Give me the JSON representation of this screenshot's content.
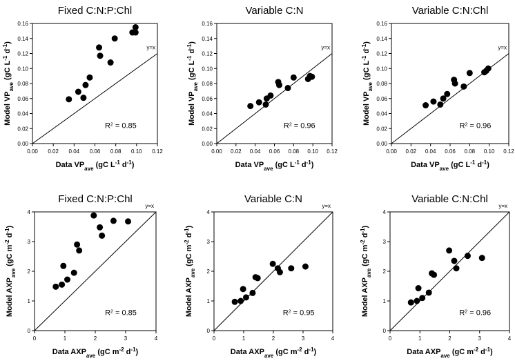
{
  "chart_data": [
    {
      "type": "scatter",
      "title": "Fixed C:N:P:Chl",
      "xlabel": {
        "main": "Data VP",
        "sub": "ave",
        "unit": " (gC L",
        "unit_exp1": "-1",
        "mid": " d",
        "unit_exp2": "-1",
        "end": ")"
      },
      "ylabel": {
        "main": "Model VP",
        "sub": "ave",
        "unit": " (gC L",
        "unit_exp1": "-1",
        "mid": " d",
        "unit_exp2": "-1",
        "end": ")"
      },
      "xlim": [
        0,
        0.12
      ],
      "ylim": [
        0,
        0.16
      ],
      "xticks": [
        "0.00",
        "0.02",
        "0.04",
        "0.06",
        "0.08",
        "0.10",
        "0.12"
      ],
      "yticks": [
        "0.00",
        "0.02",
        "0.04",
        "0.06",
        "0.08",
        "0.10",
        "0.12",
        "0.14",
        "0.16"
      ],
      "reference_line": "y=x",
      "r2_label": "R",
      "r2_exp": "2",
      "r2_value": " = 0.85",
      "points": [
        [
          0.035,
          0.059
        ],
        [
          0.044,
          0.069
        ],
        [
          0.049,
          0.061
        ],
        [
          0.051,
          0.078
        ],
        [
          0.055,
          0.088
        ],
        [
          0.064,
          0.128
        ],
        [
          0.065,
          0.117
        ],
        [
          0.075,
          0.108
        ],
        [
          0.079,
          0.14
        ],
        [
          0.096,
          0.148
        ],
        [
          0.099,
          0.148
        ],
        [
          0.099,
          0.155
        ]
      ]
    },
    {
      "type": "scatter",
      "title": "Variable C:N",
      "xlabel": {
        "main": "Data VP",
        "sub": "ave",
        "unit": " (gC L",
        "unit_exp1": "-1",
        "mid": " d",
        "unit_exp2": "-1",
        "end": ")"
      },
      "ylabel": {
        "main": "Model VP",
        "sub": "ave",
        "unit": " (gC L",
        "unit_exp1": "-1",
        "mid": " d",
        "unit_exp2": "-1",
        "end": ")"
      },
      "xlim": [
        0,
        0.12
      ],
      "ylim": [
        0,
        0.16
      ],
      "xticks": [
        "0.00",
        "0.02",
        "0.04",
        "0.06",
        "0.08",
        "0.10",
        "0.12"
      ],
      "yticks": [
        "0.00",
        "0.02",
        "0.04",
        "0.06",
        "0.08",
        "0.10",
        "0.12",
        "0.14",
        "0.16"
      ],
      "reference_line": "y=x",
      "r2_label": "R",
      "r2_exp": "2",
      "r2_value": " = 0.96",
      "points": [
        [
          0.035,
          0.05
        ],
        [
          0.044,
          0.055
        ],
        [
          0.051,
          0.052
        ],
        [
          0.052,
          0.06
        ],
        [
          0.056,
          0.064
        ],
        [
          0.064,
          0.082
        ],
        [
          0.065,
          0.078
        ],
        [
          0.074,
          0.074
        ],
        [
          0.08,
          0.088
        ],
        [
          0.095,
          0.086
        ],
        [
          0.097,
          0.09
        ],
        [
          0.099,
          0.089
        ]
      ]
    },
    {
      "type": "scatter",
      "title": "Variable C:N:Chl",
      "xlabel": {
        "main": "Data VP",
        "sub": "ave",
        "unit": " (gC L",
        "unit_exp1": "-1",
        "mid": " d",
        "unit_exp2": "-1",
        "end": ")"
      },
      "ylabel": {
        "main": "Model VP",
        "sub": "ave",
        "unit": " (gC L",
        "unit_exp1": "-1",
        "mid": " d",
        "unit_exp2": "-1",
        "end": ")"
      },
      "xlim": [
        0,
        0.12
      ],
      "ylim": [
        0,
        0.16
      ],
      "xticks": [
        "0.00",
        "0.02",
        "0.04",
        "0.06",
        "0.08",
        "0.10",
        "0.12"
      ],
      "yticks": [
        "0.00",
        "0.02",
        "0.04",
        "0.06",
        "0.08",
        "0.10",
        "0.12",
        "0.14",
        "0.16"
      ],
      "reference_line": "y=x",
      "r2_label": "R",
      "r2_exp": "2",
      "r2_value": " = 0.96",
      "points": [
        [
          0.035,
          0.051
        ],
        [
          0.043,
          0.056
        ],
        [
          0.05,
          0.052
        ],
        [
          0.053,
          0.06
        ],
        [
          0.057,
          0.066
        ],
        [
          0.064,
          0.085
        ],
        [
          0.065,
          0.08
        ],
        [
          0.074,
          0.076
        ],
        [
          0.08,
          0.094
        ],
        [
          0.095,
          0.095
        ],
        [
          0.097,
          0.097
        ],
        [
          0.099,
          0.1
        ]
      ]
    },
    {
      "type": "scatter",
      "title": "Fixed C:N:P:Chl",
      "xlabel": {
        "main": "Data AXP",
        "sub": "ave",
        "unit": " (gC m",
        "unit_exp1": "-2",
        "mid": " d",
        "unit_exp2": "-1",
        "end": ")"
      },
      "ylabel": {
        "main": "Model AXP",
        "sub": "ave",
        "unit": " (gC m",
        "unit_exp1": "-2",
        "mid": " d",
        "unit_exp2": "-1",
        "end": ")"
      },
      "xlim": [
        0,
        4
      ],
      "ylim": [
        0,
        4
      ],
      "xticks": [
        "0",
        "1",
        "2",
        "3",
        "4"
      ],
      "yticks": [
        "0",
        "1",
        "2",
        "3",
        "4"
      ],
      "reference_line": "y=x",
      "r2_label": "R",
      "r2_exp": "2",
      "r2_value": " = 0.85",
      "points": [
        [
          0.7,
          1.48
        ],
        [
          0.9,
          1.55
        ],
        [
          0.95,
          2.18
        ],
        [
          1.08,
          1.72
        ],
        [
          1.3,
          1.95
        ],
        [
          1.4,
          2.9
        ],
        [
          1.47,
          2.7
        ],
        [
          1.95,
          3.88
        ],
        [
          2.15,
          3.48
        ],
        [
          2.22,
          3.2
        ],
        [
          2.6,
          3.7
        ],
        [
          3.08,
          3.68
        ]
      ]
    },
    {
      "type": "scatter",
      "title": "Variable C:N",
      "xlabel": {
        "main": "Data AXP",
        "sub": "ave",
        "unit": " (gC m",
        "unit_exp1": "-2",
        "mid": " d",
        "unit_exp2": "-1",
        "end": ")"
      },
      "ylabel": {
        "main": "Model AXP",
        "sub": "ave",
        "unit": " (gC m",
        "unit_exp1": "-2",
        "mid": " d",
        "unit_exp2": "-1",
        "end": ")"
      },
      "xlim": [
        0,
        4
      ],
      "ylim": [
        0,
        4
      ],
      "xticks": [
        "0",
        "1",
        "2",
        "3",
        "4"
      ],
      "yticks": [
        "0",
        "1",
        "2",
        "3",
        "4"
      ],
      "reference_line": "y=x",
      "r2_label": "R",
      "r2_exp": "2",
      "r2_value": " = 0.95",
      "points": [
        [
          0.7,
          0.97
        ],
        [
          0.9,
          1.0
        ],
        [
          0.98,
          1.4
        ],
        [
          1.08,
          1.12
        ],
        [
          1.3,
          1.27
        ],
        [
          1.4,
          1.8
        ],
        [
          1.47,
          1.77
        ],
        [
          1.98,
          2.25
        ],
        [
          2.15,
          2.1
        ],
        [
          2.22,
          1.97
        ],
        [
          2.6,
          2.1
        ],
        [
          3.08,
          2.16
        ]
      ]
    },
    {
      "type": "scatter",
      "title": "Variable C:N:Chl",
      "xlabel": {
        "main": "Data AXP",
        "sub": "ave",
        "unit": " (gC m",
        "unit_exp1": "-2",
        "mid": " d",
        "unit_exp2": "-1",
        "end": ")"
      },
      "ylabel": {
        "main": "Model AXP",
        "sub": "ave",
        "unit": " (gC m",
        "unit_exp1": "-2",
        "mid": " d",
        "unit_exp2": "-1",
        "end": ")"
      },
      "xlim": [
        0,
        4
      ],
      "ylim": [
        0,
        4
      ],
      "xticks": [
        "0",
        "1",
        "2",
        "3",
        "4"
      ],
      "yticks": [
        "0",
        "1",
        "2",
        "3",
        "4"
      ],
      "reference_line": "y=x",
      "r2_label": "R",
      "r2_exp": "2",
      "r2_value": " = 0.96",
      "points": [
        [
          0.7,
          0.95
        ],
        [
          0.9,
          1.0
        ],
        [
          0.95,
          1.43
        ],
        [
          1.08,
          1.1
        ],
        [
          1.3,
          1.28
        ],
        [
          1.4,
          1.93
        ],
        [
          1.47,
          1.88
        ],
        [
          1.98,
          2.7
        ],
        [
          2.15,
          2.35
        ],
        [
          2.22,
          2.1
        ],
        [
          2.6,
          2.52
        ],
        [
          3.08,
          2.45
        ]
      ]
    }
  ]
}
